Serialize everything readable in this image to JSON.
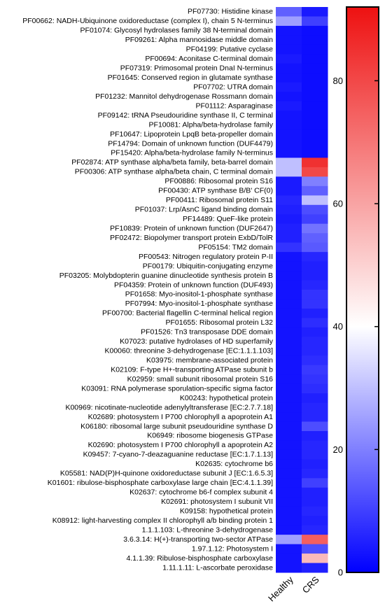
{
  "chart_data": {
    "type": "heatmap",
    "columns": [
      "Healthy",
      "CRS"
    ],
    "rows": [
      {
        "label": "PF07730: Histidine kinase",
        "values": [
          15,
          4
        ]
      },
      {
        "label": "PF00662: NADH-Ubiquinone oxidoreductase (complex I), chain 5 N-terminus",
        "values": [
          25,
          10
        ]
      },
      {
        "label": "PF01074: Glycosyl hydrolases family 38 N-terminal domain",
        "values": [
          3,
          2
        ]
      },
      {
        "label": "PF09261: Alpha mannosidase middle domain",
        "values": [
          3,
          2
        ]
      },
      {
        "label": "PF04199: Putative cyclase",
        "values": [
          3,
          2
        ]
      },
      {
        "label": "PF00694: Aconitase C-terminal domain",
        "values": [
          4,
          2
        ]
      },
      {
        "label": "PF07319: Primosomal protein DnaI N-terminus",
        "values": [
          3,
          2
        ]
      },
      {
        "label": "PF01645: Conserved region in glutamate synthase",
        "values": [
          3,
          2
        ]
      },
      {
        "label": "PF07702: UTRA domain",
        "values": [
          4,
          2
        ]
      },
      {
        "label": "PF01232: Mannitol dehydrogenase Rossmann domain",
        "values": [
          3,
          2
        ]
      },
      {
        "label": "PF01112: Asparaginase",
        "values": [
          4,
          2
        ]
      },
      {
        "label": "PF09142: tRNA Pseudouridine synthase II, C terminal",
        "values": [
          3,
          2
        ]
      },
      {
        "label": "PF10081: Alpha/beta-hydrolase family",
        "values": [
          3,
          2
        ]
      },
      {
        "label": "PF10647: Lipoprotein LpqB beta-propeller domain",
        "values": [
          3,
          2
        ]
      },
      {
        "label": "PF14794: Domain of unknown function (DUF4479)",
        "values": [
          3,
          2
        ]
      },
      {
        "label": "PF15420: Alpha/beta-hydrolase family N-terminus",
        "values": [
          3,
          2
        ]
      },
      {
        "label": "PF02874: ATP synthase alpha/beta family, beta-barrel domain",
        "values": [
          30,
          85
        ]
      },
      {
        "label": "PF00306: ATP synthase alpha/beta chain, C terminal domain",
        "values": [
          30,
          80
        ]
      },
      {
        "label": "PF00886: Ribosomal protein S16",
        "values": [
          4,
          20
        ]
      },
      {
        "label": "PF00430: ATP synthase B/B' CF(0)",
        "values": [
          4,
          15
        ]
      },
      {
        "label": "PF00411: Ribosomal protein S11",
        "values": [
          6,
          30
        ]
      },
      {
        "label": "PF01037: Lrp/AsnC ligand binding domain",
        "values": [
          5,
          12
        ]
      },
      {
        "label": "PF14489: QueF-like protein",
        "values": [
          4,
          10
        ]
      },
      {
        "label": "PF10839: Protein of unknown function (DUF2647)",
        "values": [
          5,
          18
        ]
      },
      {
        "label": "PF02472: Biopolymer transport protein ExbD/TolR",
        "values": [
          5,
          15
        ]
      },
      {
        "label": "PF05154: TM2 domain",
        "values": [
          8,
          14
        ]
      },
      {
        "label": "PF00543: Nitrogen regulatory protein P-II",
        "values": [
          3,
          6
        ]
      },
      {
        "label": "PF00179: Ubiquitin-conjugating enzyme",
        "values": [
          3,
          5
        ]
      },
      {
        "label": "PF03205: Molybdopterin guanine dinucleotide synthesis protein B",
        "values": [
          3,
          5
        ]
      },
      {
        "label": "PF04359: Protein of unknown function (DUF493)",
        "values": [
          3,
          6
        ]
      },
      {
        "label": "PF01658: Myo-inositol-1-phosphate synthase",
        "values": [
          3,
          8
        ]
      },
      {
        "label": "PF07994: Myo-inositol-1-phosphate synthase",
        "values": [
          3,
          8
        ]
      },
      {
        "label": "PF00700: Bacterial flagellin C-terminal helical region",
        "values": [
          3,
          5
        ]
      },
      {
        "label": "PF01655: Ribosomal protein L32",
        "values": [
          3,
          7
        ]
      },
      {
        "label": "PF01526: Tn3 transposase DDE domain",
        "values": [
          3,
          5
        ]
      },
      {
        "label": "K07023: putative hydrolases of HD superfamily",
        "values": [
          3,
          6
        ]
      },
      {
        "label": "K00060: threonine 3-dehydrogenase [EC:1.1.1.103]",
        "values": [
          3,
          6
        ]
      },
      {
        "label": "K03975: membrane-associated protein",
        "values": [
          3,
          7
        ]
      },
      {
        "label": "K02109: F-type H+-transporting ATPase subunit b",
        "values": [
          3,
          9
        ]
      },
      {
        "label": "K02959: small subunit ribosomal protein S16",
        "values": [
          3,
          8
        ]
      },
      {
        "label": "K03091: RNA polymerase sporulation-specific sigma factor",
        "values": [
          3,
          7
        ]
      },
      {
        "label": "K00243: hypothetical protein",
        "values": [
          3,
          5
        ]
      },
      {
        "label": "K00969: nicotinate-nucleotide adenylyltransferase [EC:2.7.7.18]",
        "values": [
          3,
          6
        ]
      },
      {
        "label": "K02689: photosystem I P700 chlorophyll a apoprotein A1",
        "values": [
          3,
          6
        ]
      },
      {
        "label": "K06180: ribosomal large subunit pseudouridine synthase D",
        "values": [
          3,
          12
        ]
      },
      {
        "label": "K06949: ribosome biogenesis GTPase",
        "values": [
          3,
          5
        ]
      },
      {
        "label": "K02690: photosystem I P700 chlorophyll a apoprotein A2",
        "values": [
          3,
          6
        ]
      },
      {
        "label": "K09457: 7-cyano-7-deazaguanine reductase [EC:1.7.1.13]",
        "values": [
          3,
          6
        ]
      },
      {
        "label": "K02635: cytochrome b6",
        "values": [
          3,
          5
        ]
      },
      {
        "label": "K05581: NAD(P)H-quinone oxidoreductase subunit J [EC:1.6.5.3]",
        "values": [
          3,
          6
        ]
      },
      {
        "label": "K01601: ribulose-bisphosphate carboxylase large chain [EC:4.1.1.39]",
        "values": [
          3,
          10
        ]
      },
      {
        "label": "K02637: cytochrome b6-f complex subunit 4",
        "values": [
          3,
          5
        ]
      },
      {
        "label": "K02691: photosystem I subunit VII",
        "values": [
          3,
          5
        ]
      },
      {
        "label": "K09158: hypothetical protein",
        "values": [
          3,
          6
        ]
      },
      {
        "label": "K08912: light-harvesting complex II chlorophyll a/b binding protein 1",
        "values": [
          3,
          5
        ]
      },
      {
        "label": "1.1.1.103: L-threonine 3-dehydrogenase",
        "values": [
          3,
          6
        ]
      },
      {
        "label": "3.6.3.14: H(+)-transporting two-sector ATPase",
        "values": [
          25,
          75
        ]
      },
      {
        "label": "1.97.1.12: Photosystem I",
        "values": [
          3,
          12
        ]
      },
      {
        "label": "4.1.1.39: Ribulose-bisphosphate carboxylase",
        "values": [
          3,
          55
        ]
      },
      {
        "label": "1.11.1.11: L-ascorbate peroxidase",
        "values": [
          3,
          5
        ]
      }
    ],
    "colorbar": {
      "min": 0,
      "max": 92,
      "ticks": [
        0,
        20,
        40,
        60,
        80
      ],
      "low_color": "#0000ff",
      "mid_color": "#ffffff",
      "mid_value": 40,
      "high_color": "#ee1111"
    }
  }
}
